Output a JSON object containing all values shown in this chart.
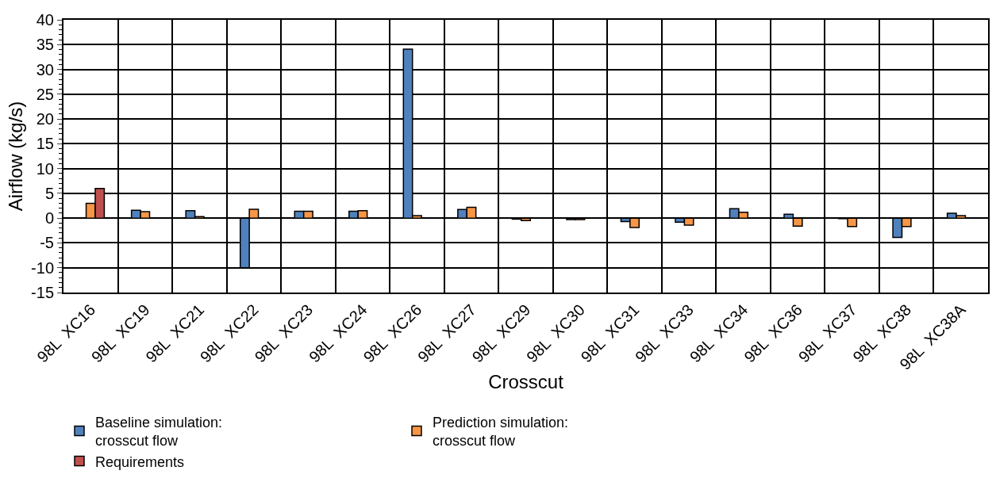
{
  "chart_data": {
    "type": "bar",
    "xlabel": "Crosscut",
    "ylabel": "Airflow (kg/s)",
    "categories": [
      "98L  XC16",
      "98L  XC19",
      "98L  XC21",
      "98L  XC22",
      "98L  XC23",
      "98L  XC24",
      "98L  XC26",
      "98L  XC27",
      "98L  XC29",
      "98L  XC30",
      "98L  XC31",
      "98L  XC33",
      "98L  XC34",
      "98L  XC36",
      "98L  XC37",
      "98L  XC38",
      "98L  XC38A"
    ],
    "series": [
      {
        "name": "Baseline simulation:\ncrosscut flow",
        "color": "#4f81bd",
        "values": [
          null,
          1.6,
          1.5,
          -10,
          1.4,
          1.4,
          34.1,
          1.75,
          -0.2,
          -0.3,
          -0.7,
          -0.8,
          1.9,
          0.8,
          -0.1,
          -3.9,
          1.0
        ]
      },
      {
        "name": "Prediction simulation:\ncrosscut flow",
        "color": "#f79646",
        "values": [
          3.0,
          1.3,
          0.3,
          1.8,
          1.4,
          1.5,
          0.5,
          2.2,
          -0.5,
          -0.3,
          -1.9,
          -1.4,
          1.2,
          -1.6,
          -1.7,
          -1.7,
          0.5
        ]
      },
      {
        "name": "Requirements",
        "color": "#c0504d",
        "values": [
          6.0,
          null,
          null,
          null,
          null,
          null,
          null,
          null,
          null,
          null,
          null,
          null,
          null,
          null,
          null,
          null,
          null
        ]
      }
    ],
    "ylim": [
      -15,
      40
    ],
    "yticks": [
      -15,
      -10,
      -5,
      0,
      5,
      10,
      15,
      20,
      25,
      30,
      35,
      40
    ],
    "grid": true,
    "legend": "bottom"
  }
}
